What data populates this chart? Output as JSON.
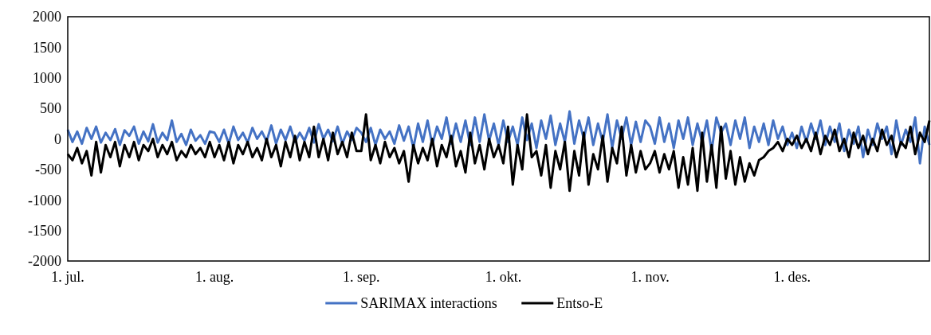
{
  "chart_data": {
    "type": "line",
    "x": [
      "--07-01",
      "--07-02",
      "--07-03",
      "--07-04",
      "--07-05",
      "--07-06",
      "--07-07",
      "--07-08",
      "--07-09",
      "--07-10",
      "--07-11",
      "--07-12",
      "--07-13",
      "--07-14",
      "--07-15",
      "--07-16",
      "--07-17",
      "--07-18",
      "--07-19",
      "--07-20",
      "--07-21",
      "--07-22",
      "--07-23",
      "--07-24",
      "--07-25",
      "--07-26",
      "--07-27",
      "--07-28",
      "--07-29",
      "--07-30",
      "--07-31",
      "--08-01",
      "--08-02",
      "--08-03",
      "--08-04",
      "--08-05",
      "--08-06",
      "--08-07",
      "--08-08",
      "--08-09",
      "--08-10",
      "--08-11",
      "--08-12",
      "--08-13",
      "--08-14",
      "--08-15",
      "--08-16",
      "--08-17",
      "--08-18",
      "--08-19",
      "--08-20",
      "--08-21",
      "--08-22",
      "--08-23",
      "--08-24",
      "--08-25",
      "--08-26",
      "--08-27",
      "--08-28",
      "--08-29",
      "--08-30",
      "--08-31",
      "--09-01",
      "--09-02",
      "--09-03",
      "--09-04",
      "--09-05",
      "--09-06",
      "--09-07",
      "--09-08",
      "--09-09",
      "--09-10",
      "--09-11",
      "--09-12",
      "--09-13",
      "--09-14",
      "--09-15",
      "--09-16",
      "--09-17",
      "--09-18",
      "--09-19",
      "--09-20",
      "--09-21",
      "--09-22",
      "--09-23",
      "--09-24",
      "--09-25",
      "--09-26",
      "--09-27",
      "--09-28",
      "--09-29",
      "--09-30",
      "--10-01",
      "--10-02",
      "--10-03",
      "--10-04",
      "--10-05",
      "--10-06",
      "--10-07",
      "--10-08",
      "--10-09",
      "--10-10",
      "--10-11",
      "--10-12",
      "--10-13",
      "--10-14",
      "--10-15",
      "--10-16",
      "--10-17",
      "--10-18",
      "--10-19",
      "--10-20",
      "--10-21",
      "--10-22",
      "--10-23",
      "--10-24",
      "--10-25",
      "--10-26",
      "--10-27",
      "--10-28",
      "--10-29",
      "--10-30",
      "--10-31",
      "--11-01",
      "--11-02",
      "--11-03",
      "--11-04",
      "--11-05",
      "--11-06",
      "--11-07",
      "--11-08",
      "--11-09",
      "--11-10",
      "--11-11",
      "--11-12",
      "--11-13",
      "--11-14",
      "--11-15",
      "--11-16",
      "--11-17",
      "--11-18",
      "--11-19",
      "--11-20",
      "--11-21",
      "--11-22",
      "--11-23",
      "--11-24",
      "--11-25",
      "--11-26",
      "--11-27",
      "--11-28",
      "--11-29",
      "--11-30",
      "--12-01",
      "--12-02",
      "--12-03",
      "--12-04",
      "--12-05",
      "--12-06",
      "--12-07",
      "--12-08",
      "--12-09",
      "--12-10",
      "--12-11",
      "--12-12",
      "--12-13",
      "--12-14",
      "--12-15",
      "--12-16",
      "--12-17",
      "--12-18",
      "--12-19",
      "--12-20",
      "--12-21",
      "--12-22",
      "--12-23",
      "--12-24",
      "--12-25",
      "--12-26",
      "--12-27",
      "--12-28",
      "--12-29",
      "--12-30"
    ],
    "series": [
      {
        "name": "SARIMAX interactions",
        "color": "#4472c4",
        "values": [
          150,
          -50,
          120,
          -80,
          180,
          0,
          200,
          -60,
          100,
          -20,
          160,
          -100,
          140,
          50,
          200,
          -80,
          120,
          -40,
          240,
          -60,
          100,
          -20,
          300,
          -50,
          80,
          -100,
          150,
          -30,
          60,
          -80,
          120,
          100,
          -50,
          150,
          -80,
          200,
          -20,
          100,
          -60,
          180,
          0,
          120,
          -40,
          220,
          -80,
          150,
          -20,
          200,
          -50,
          100,
          -30,
          180,
          -60,
          240,
          0,
          150,
          -40,
          200,
          -80,
          120,
          -20,
          180,
          100,
          -50,
          180,
          -100,
          150,
          0,
          120,
          -80,
          220,
          -30,
          200,
          -150,
          250,
          -50,
          300,
          -100,
          200,
          0,
          350,
          -80,
          250,
          -50,
          300,
          -100,
          350,
          -50,
          400,
          -30,
          250,
          -100,
          300,
          -50,
          200,
          -100,
          350,
          -20,
          250,
          -150,
          300,
          0,
          380,
          -100,
          250,
          -50,
          450,
          -80,
          300,
          0,
          350,
          -100,
          250,
          -50,
          400,
          -150,
          300,
          0,
          350,
          -100,
          280,
          -50,
          300,
          200,
          -80,
          350,
          -50,
          250,
          -150,
          300,
          0,
          350,
          -100,
          250,
          -50,
          300,
          -200,
          350,
          100,
          250,
          -100,
          300,
          0,
          350,
          -150,
          200,
          -50,
          250,
          -100,
          300,
          0,
          200,
          -100,
          100,
          -150,
          200,
          -50,
          250,
          0,
          300,
          -100,
          200,
          -50,
          250,
          -200,
          150,
          -80,
          200,
          -300,
          150,
          -100,
          250,
          0,
          200,
          -250,
          300,
          -100,
          150,
          -50,
          350,
          -400,
          200,
          -100
        ]
      },
      {
        "name": "Entso-E",
        "color": "#000000",
        "values": [
          -250,
          -350,
          -150,
          -400,
          -200,
          -600,
          -50,
          -550,
          -100,
          -300,
          -50,
          -450,
          -100,
          -300,
          -50,
          -350,
          -100,
          -200,
          0,
          -300,
          -100,
          -250,
          -50,
          -350,
          -200,
          -300,
          -100,
          -250,
          -150,
          -300,
          -50,
          -300,
          -100,
          -350,
          -50,
          -400,
          -100,
          -250,
          -50,
          -300,
          -150,
          -350,
          0,
          -300,
          -100,
          -450,
          -50,
          -300,
          50,
          -350,
          -50,
          -300,
          200,
          -300,
          0,
          -350,
          100,
          -250,
          -50,
          -300,
          100,
          -200,
          -200,
          400,
          -350,
          -100,
          -400,
          -50,
          -300,
          -150,
          -400,
          -200,
          -700,
          -100,
          -400,
          -150,
          -350,
          0,
          -450,
          -100,
          -300,
          50,
          -450,
          -200,
          -550,
          100,
          -400,
          -100,
          -500,
          0,
          -300,
          -100,
          -400,
          200,
          -750,
          -100,
          -500,
          400,
          -300,
          -200,
          -600,
          -100,
          -800,
          -200,
          -500,
          -50,
          -850,
          -200,
          -600,
          100,
          -750,
          -250,
          -500,
          50,
          -700,
          -150,
          -400,
          200,
          -600,
          -100,
          -550,
          -200,
          -500,
          -400,
          -200,
          -550,
          -250,
          -500,
          -200,
          -800,
          -300,
          -750,
          -150,
          -850,
          100,
          -700,
          -100,
          -800,
          200,
          -650,
          -200,
          -750,
          -300,
          -700,
          -400,
          -600,
          -350,
          -300,
          -200,
          -150,
          -50,
          -200,
          0,
          -100,
          50,
          -150,
          0,
          -200,
          100,
          -250,
          50,
          -100,
          150,
          -200,
          0,
          -300,
          100,
          -150,
          50,
          -250,
          0,
          -200,
          150,
          -100,
          50,
          -300,
          -50,
          -150,
          200,
          -250,
          100,
          -50,
          300
        ]
      }
    ],
    "xlim": [
      "--07-01",
      "--12-30"
    ],
    "xticks": [
      {
        "value": "--07-01",
        "label": "1. jul."
      },
      {
        "value": "--08-01",
        "label": "1. aug."
      },
      {
        "value": "--09-01",
        "label": "1. sep."
      },
      {
        "value": "--10-01",
        "label": "1. okt."
      },
      {
        "value": "--11-01",
        "label": "1. nov."
      },
      {
        "value": "--12-01",
        "label": "1. des."
      }
    ],
    "ylim": [
      -2000,
      2000
    ],
    "yticks": [
      -2000,
      -1500,
      -1000,
      -500,
      0,
      500,
      1000,
      1500,
      2000
    ],
    "grid": false,
    "legend": "bottom",
    "line_style": "solid"
  }
}
